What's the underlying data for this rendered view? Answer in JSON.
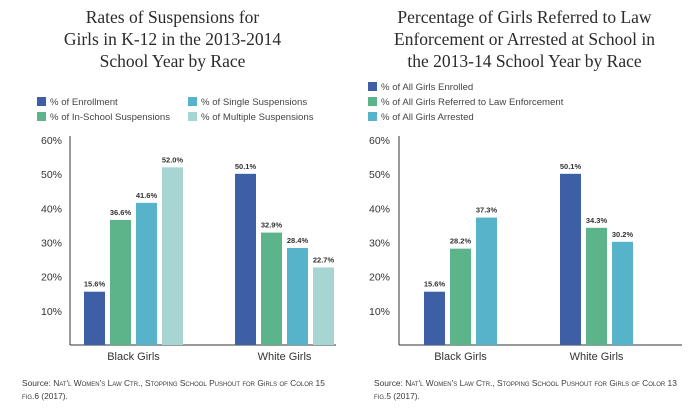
{
  "colors": {
    "blue": "#3d5fa5",
    "green": "#5bb48a",
    "teal": "#56b3c9",
    "pale": "#a7d6d2",
    "axis": "#333333",
    "grid": "#bbbbbb"
  },
  "left": {
    "title_lines": [
      "Rates of Suspensions for",
      "Girls in K-12 in the 2013-2014",
      "School Year by Race"
    ],
    "legend": [
      "% of Enrollment",
      "% of In-School Suspensions",
      "% of Single Suspensions",
      "% of Multiple Suspensions"
    ],
    "source_label": "Source:",
    "source_text": "Nat'l Women's Law Ctr., Stopping School Pushout for Girls of Color 15 fig.6 (2017)."
  },
  "right": {
    "title_lines": [
      "Percentage of Girls Referred to Law",
      "Enforcement or Arrested at School in",
      "the 2013-14 School Year by Race"
    ],
    "legend": [
      "% of All Girls Enrolled",
      "% of All Girls Referred to Law Enforcement",
      "% of All Girls Arrested"
    ],
    "source_label": "Source:",
    "source_text": "Nat'l Women's Law Ctr., Stopping School Pushout for Girls of Color 13 fig.5 (2017)."
  },
  "chart_data": [
    {
      "type": "bar",
      "title": "Rates of Suspensions for Girls in K-12 in the 2013-2014 School Year by Race",
      "categories": [
        "Black Girls",
        "White Girls"
      ],
      "series": [
        {
          "name": "% of Enrollment",
          "values": [
            15.6,
            50.1
          ],
          "color": "#3d5fa5"
        },
        {
          "name": "% of In-School Suspensions",
          "values": [
            36.6,
            32.9
          ],
          "color": "#5bb48a"
        },
        {
          "name": "% of Single Suspensions",
          "values": [
            41.6,
            28.4
          ],
          "color": "#56b3c9"
        },
        {
          "name": "% of Multiple Suspensions",
          "values": [
            52.0,
            22.7
          ],
          "color": "#a7d6d2"
        }
      ],
      "data_labels": [
        [
          "15.6%",
          "36.6%",
          "41.6%",
          "52.0%"
        ],
        [
          "50.1%",
          "32.9%",
          "28.4%",
          "22.7%"
        ]
      ],
      "yticks": [
        "10%",
        "20%",
        "30%",
        "40%",
        "50%",
        "60%"
      ],
      "ylim": [
        0,
        60
      ],
      "grid": false,
      "legend_position": "top"
    },
    {
      "type": "bar",
      "title": "Percentage of Girls Referred to Law Enforcement or Arrested at School in the 2013-14 School Year by Race",
      "categories": [
        "Black Girls",
        "White Girls"
      ],
      "series": [
        {
          "name": "% of All Girls Enrolled",
          "values": [
            15.6,
            50.1
          ],
          "color": "#3d5fa5"
        },
        {
          "name": "% of All Girls Referred to Law Enforcement",
          "values": [
            28.2,
            34.3
          ],
          "color": "#5bb48a"
        },
        {
          "name": "% of All Girls Arrested",
          "values": [
            37.3,
            30.2
          ],
          "color": "#56b3c9"
        }
      ],
      "data_labels": [
        [
          "15.6%",
          "28.2%",
          "37.3%"
        ],
        [
          "50.1%",
          "34.3%",
          "30.2%"
        ]
      ],
      "yticks": [
        "10%",
        "20%",
        "30%",
        "40%",
        "50%",
        "60%"
      ],
      "ylim": [
        0,
        60
      ],
      "grid": false,
      "legend_position": "top"
    }
  ]
}
